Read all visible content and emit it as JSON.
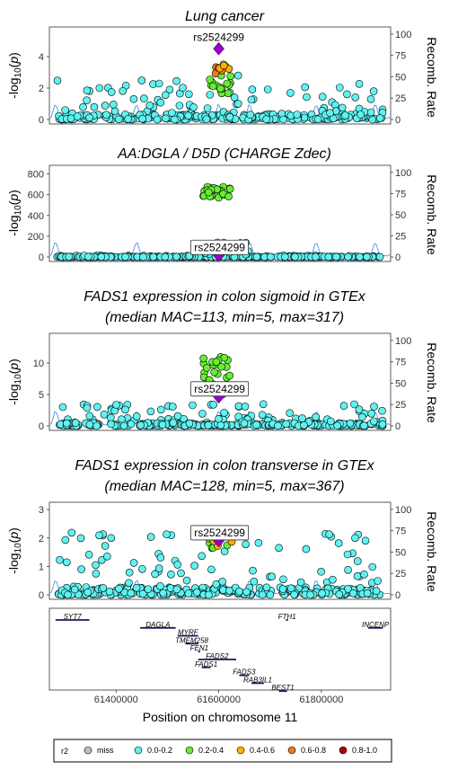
{
  "chart_data": [
    {
      "type": "scatter",
      "title": "Lung cancer",
      "subtitle": "",
      "ylabel": "-log10(p)",
      "ylabel_right": "Recomb. Rate",
      "ylim": [
        0,
        5.6
      ],
      "yticks": [
        0,
        2,
        4
      ],
      "y2ticks": [
        0,
        25,
        50,
        75,
        100
      ],
      "lead_snp": {
        "id": "rs2524299",
        "x": 61600000,
        "y": 4.5,
        "label_boxed": false
      },
      "clusters": [
        {
          "r2": "0.2-0.4",
          "x": [
            61580000,
            61625000
          ],
          "y": [
            1.6,
            2.8
          ],
          "n": 16
        },
        {
          "r2": "0.6-0.8",
          "x": [
            61590000,
            61615000
          ],
          "y": [
            2.6,
            3.6
          ],
          "n": 5
        },
        {
          "r2": "0.4-0.6",
          "x": [
            61580000,
            61630000
          ],
          "y": [
            3.0,
            3.6
          ],
          "n": 4
        }
      ],
      "background_r2": "0.0-0.2",
      "background_ymax": 2.8
    },
    {
      "type": "scatter",
      "title": "AA:DGLA / D5D (CHARGE Zdec)",
      "subtitle": "",
      "ylabel": "-log10(p)",
      "ylabel_right": "Recomb. Rate",
      "ylim": [
        0,
        840
      ],
      "yticks": [
        0,
        200,
        400,
        600,
        800
      ],
      "y2ticks": [
        0,
        25,
        50,
        75,
        100
      ],
      "lead_snp": {
        "id": "rs2524299",
        "x": 61600000,
        "y": 15,
        "label_boxed": true
      },
      "clusters": [
        {
          "r2": "0.2-0.4",
          "x": [
            61565000,
            61625000
          ],
          "y": [
            570,
            680
          ],
          "n": 28
        },
        {
          "r2": "0.0-0.2",
          "x": [
            61560000,
            61660000
          ],
          "y": [
            20,
            140
          ],
          "n": 14
        }
      ],
      "background_r2": "0.0-0.2",
      "background_ymax": 15
    },
    {
      "type": "scatter",
      "title": "FADS1 expression in colon sigmoid in GTEx",
      "subtitle": "(median MAC=113, min=5, max=317)",
      "ylabel": "-log10(p)",
      "ylabel_right": "Recomb. Rate",
      "ylim": [
        0,
        14
      ],
      "yticks": [
        0,
        5,
        10
      ],
      "y2ticks": [
        0,
        25,
        50,
        75,
        100
      ],
      "lead_snp": {
        "id": "rs2524299",
        "x": 61600000,
        "y": 4.6,
        "label_boxed": true
      },
      "clusters": [
        {
          "r2": "0.2-0.4",
          "x": [
            61570000,
            61625000
          ],
          "y": [
            6,
            11
          ],
          "n": 26
        },
        {
          "r2": "0.6-0.8",
          "x": [
            61595000,
            61610000
          ],
          "y": [
            5,
            6.5
          ],
          "n": 3
        },
        {
          "r2": "0.4-0.6",
          "x": [
            61590000,
            61615000
          ],
          "y": [
            4.5,
            6
          ],
          "n": 3
        }
      ],
      "background_r2": "0.0-0.2",
      "background_ymax": 3.5
    },
    {
      "type": "scatter",
      "title": "FADS1 expression in colon transverse in GTEx",
      "subtitle": "(median MAC=128, min=5, max=367)",
      "ylabel": "-log10(p)",
      "ylabel_right": "Recomb. Rate",
      "ylim": [
        0,
        3.1
      ],
      "yticks": [
        0,
        1,
        2,
        3
      ],
      "y2ticks": [
        0,
        25,
        50,
        75,
        100
      ],
      "lead_snp": {
        "id": "rs2524299",
        "x": 61600000,
        "y": 1.9,
        "label_boxed": true
      },
      "clusters": [
        {
          "r2": "0.2-0.4",
          "x": [
            61575000,
            61620000
          ],
          "y": [
            1.6,
            2.3
          ],
          "n": 10
        },
        {
          "r2": "0.4-0.6",
          "x": [
            61580000,
            61630000
          ],
          "y": [
            1.6,
            2.2
          ],
          "n": 5
        }
      ],
      "background_r2": "0.0-0.2",
      "background_ymax": 2.2
    }
  ],
  "x_range": [
    61270000,
    61935000
  ],
  "xticks": [
    61400000,
    61600000,
    61800000
  ],
  "xtick_labels": [
    "61400000",
    "61600000",
    "61800000"
  ],
  "xlabel": "Position on chromosome 11",
  "genes": [
    {
      "name": "SYT7",
      "start": 61282000,
      "end": 61348000,
      "row": 0
    },
    {
      "name": "FTH1",
      "start": 61731000,
      "end": 61735000,
      "row": 0
    },
    {
      "name": "INCENP",
      "start": 61891000,
      "end": 61920000,
      "row": 1
    },
    {
      "name": "DAGLA",
      "start": 61447000,
      "end": 61516000,
      "row": 1
    },
    {
      "name": "MYRF",
      "start": 61520000,
      "end": 61560000,
      "row": 2
    },
    {
      "name": "TMEM258",
      "start": 61535000,
      "end": 61560000,
      "row": 3
    },
    {
      "name": "FEN1",
      "start": 61560000,
      "end": 61564000,
      "row": 4
    },
    {
      "name": "FADS2",
      "start": 61560000,
      "end": 61634000,
      "row": 5
    },
    {
      "name": "FADS1",
      "start": 61567000,
      "end": 61584000,
      "row": 6
    },
    {
      "name": "FADS3",
      "start": 61640000,
      "end": 61659000,
      "row": 7
    },
    {
      "name": "RAB3IL1",
      "start": 61664000,
      "end": 61688000,
      "row": 8
    },
    {
      "name": "BEST1",
      "start": 61717000,
      "end": 61733000,
      "row": 9
    }
  ],
  "legend": {
    "title": "r2",
    "items": [
      {
        "label": "miss",
        "color": "#bebebe"
      },
      {
        "label": "0.0-0.2",
        "color": "#5ff2f2"
      },
      {
        "label": "0.2-0.4",
        "color": "#66ee33"
      },
      {
        "label": "0.4-0.6",
        "color": "#ffb000"
      },
      {
        "label": "0.6-0.8",
        "color": "#ee7a20"
      },
      {
        "label": "0.8-1.0",
        "color": "#b30000"
      }
    ]
  },
  "colors": {
    "lead": "#9900cc",
    "recomb_line": "#5aa0e8",
    "gene_line": "#1a1a5e"
  }
}
